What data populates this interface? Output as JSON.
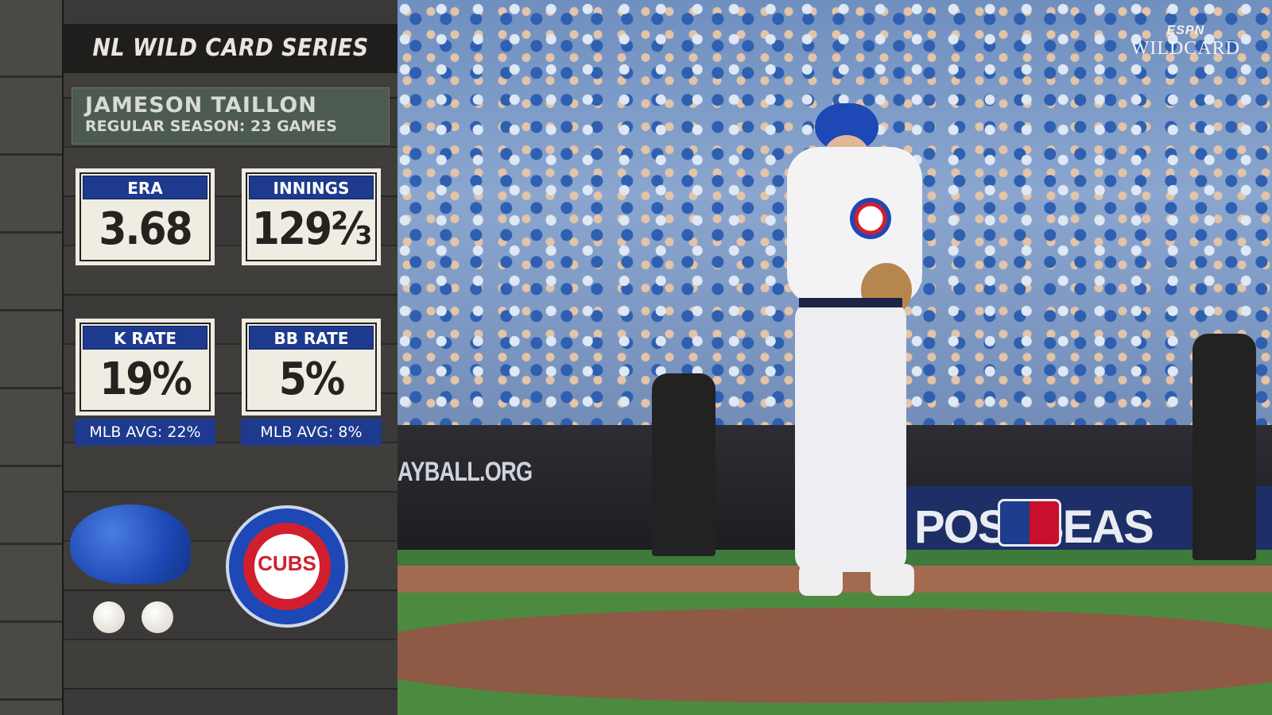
{
  "graphic": {
    "series_title": "NL WILD CARD SERIES",
    "player_name": "JAMESON TAILLON",
    "subtitle": "REGULAR SEASON: 23 GAMES",
    "stats": [
      {
        "label": "ERA",
        "value": "3.68"
      },
      {
        "label": "INNINGS",
        "value": "129⅔"
      },
      {
        "label": "K RATE",
        "value": "19%",
        "mlb_avg": "MLB AVG: 22%"
      },
      {
        "label": "BB RATE",
        "value": "5%",
        "mlb_avg": "MLB AVG: 8%"
      }
    ],
    "team_logo_text": "CUBS",
    "colors": {
      "stat_header": "#1d3a8f",
      "card": "#efece2",
      "cubs_red": "#d11f2e",
      "cubs_blue": "#1d48b5"
    }
  },
  "broadcast": {
    "network": "ESPN",
    "bug": "WILDCARD"
  },
  "scene": {
    "wall_ad": "AYBALL.ORG",
    "banner": "POSTSEAS"
  }
}
